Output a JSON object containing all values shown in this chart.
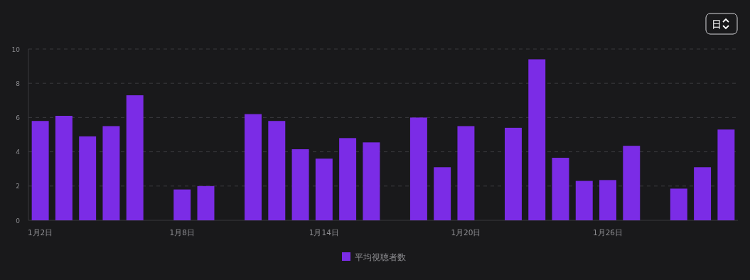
{
  "chart_data": {
    "type": "bar",
    "categories": [
      "1月2日",
      null,
      null,
      null,
      null,
      null,
      "1月8日",
      null,
      null,
      null,
      null,
      null,
      "1月14日",
      null,
      null,
      null,
      null,
      null,
      "1月20日",
      null,
      null,
      null,
      null,
      null,
      "1月26日",
      null,
      null,
      null,
      null,
      null
    ],
    "series": [
      {
        "name": "平均視聴者数",
        "color": "#7b2ce6",
        "values": [
          5.8,
          6.1,
          4.9,
          5.5,
          7.3,
          null,
          1.8,
          2.0,
          null,
          6.2,
          5.8,
          4.15,
          3.6,
          4.8,
          4.55,
          null,
          6.0,
          3.1,
          5.5,
          null,
          5.4,
          9.4,
          3.65,
          2.3,
          2.35,
          4.35,
          null,
          1.85,
          3.1,
          5.3
        ]
      }
    ],
    "ylim": [
      0,
      10
    ],
    "yticks": [
      0,
      2,
      4,
      6,
      8,
      10
    ],
    "grid": "y",
    "legend": "bottom",
    "annotations": [
      "日"
    ]
  }
}
